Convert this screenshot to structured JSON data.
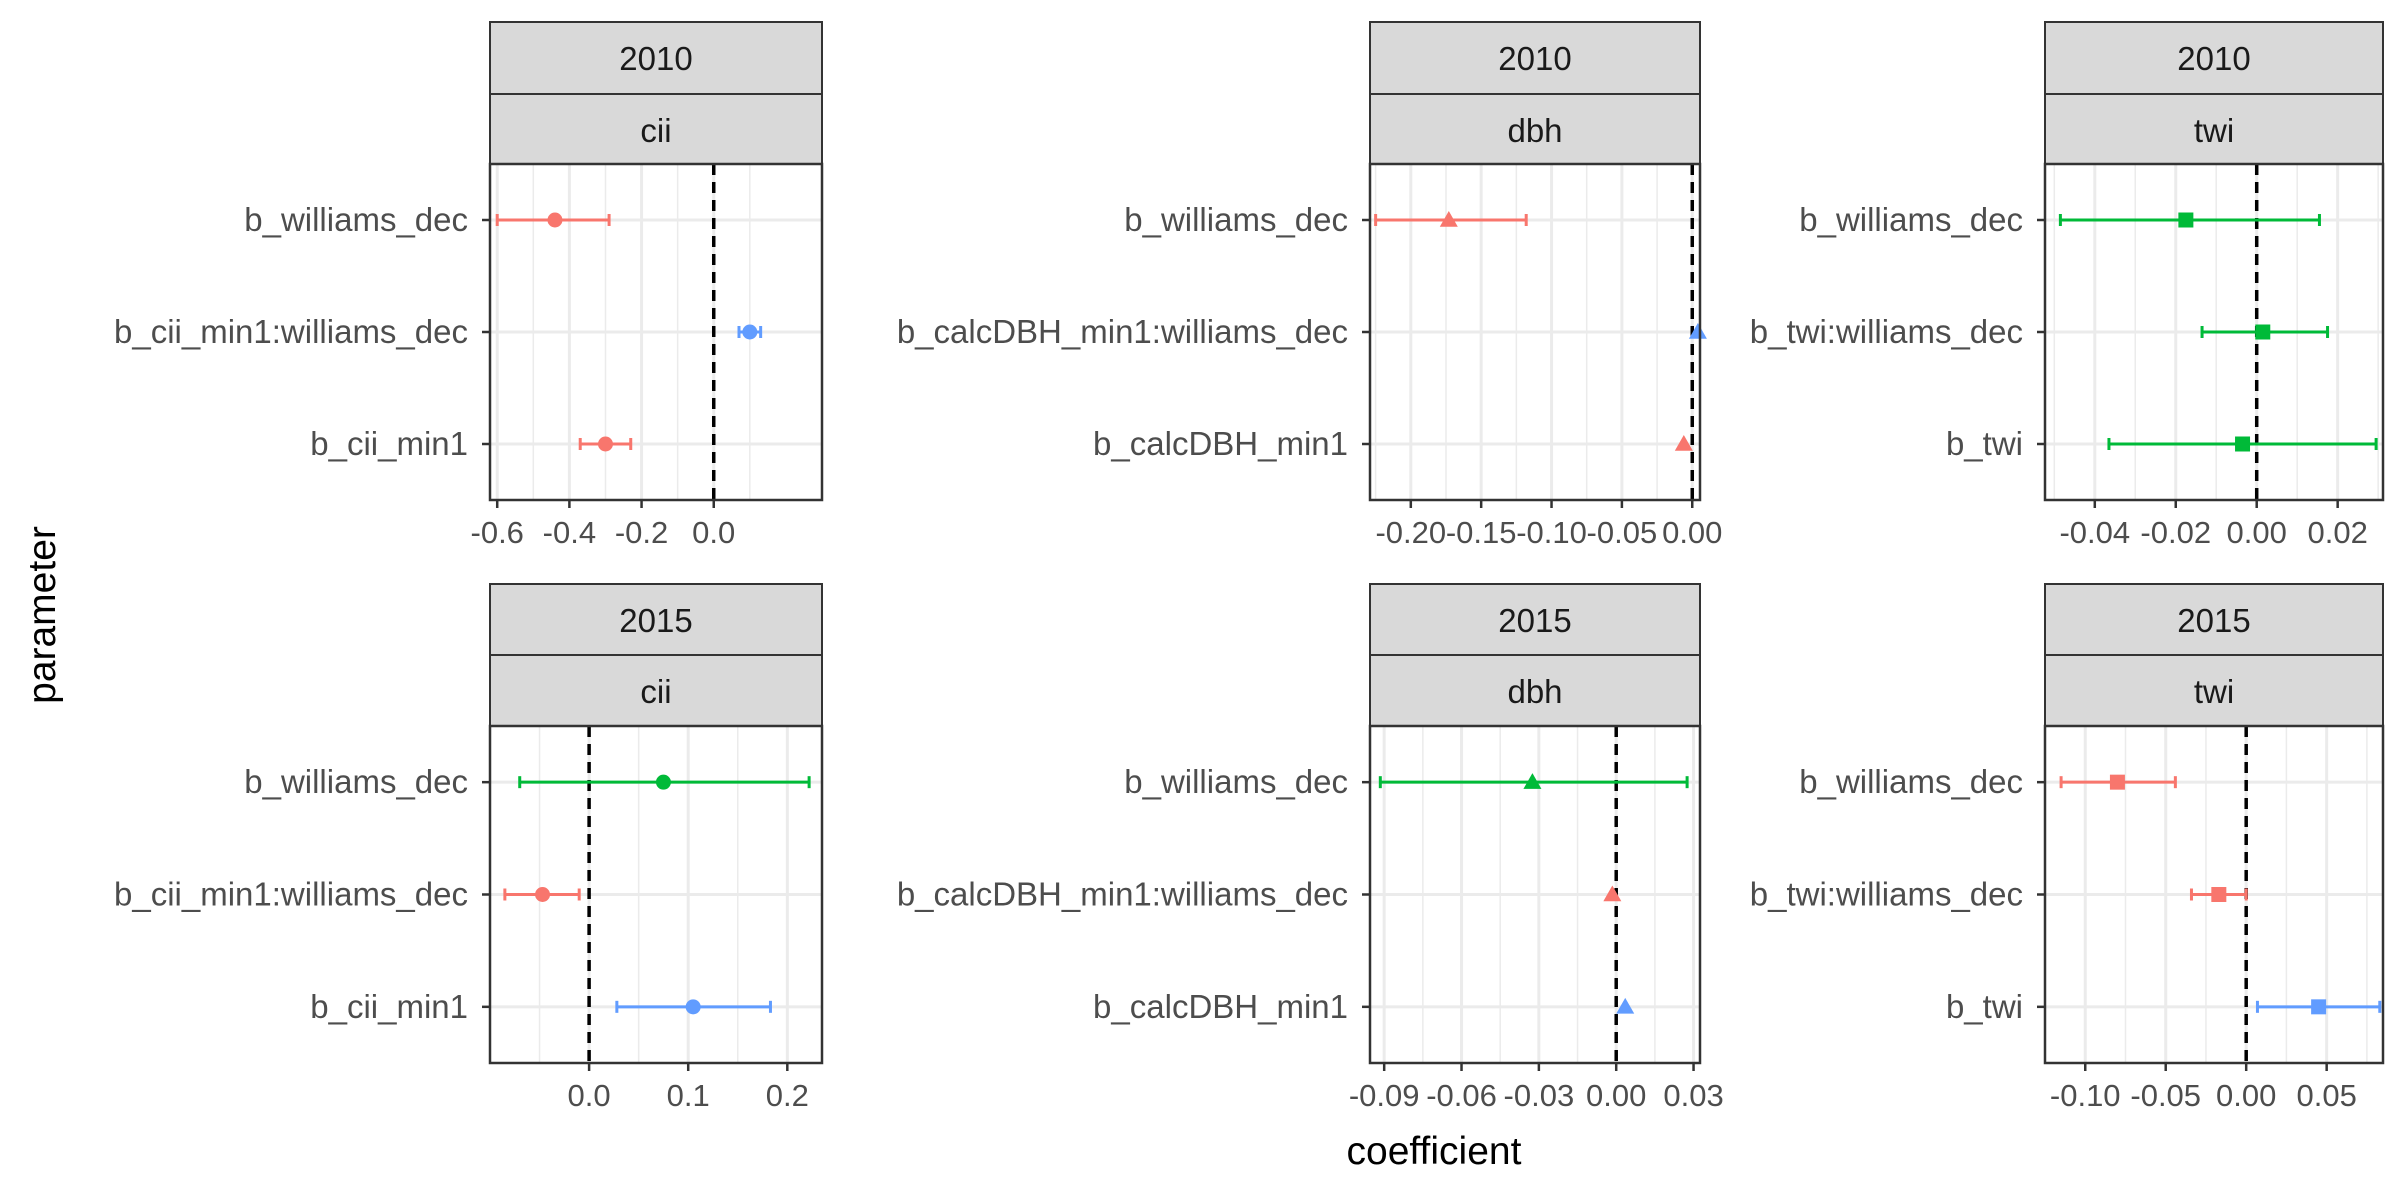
{
  "figure": {
    "xlabel": "coefficient",
    "ylabel": "parameter"
  },
  "colors": {
    "red": "#F8766D",
    "green": "#00BA38",
    "blue": "#619CFF",
    "panel_border": "#333333",
    "strip_fill": "#D9D9D9",
    "grid": "#EBEBEB",
    "text": "#4D4D4D"
  },
  "chart_data": [
    {
      "type": "scatter",
      "strip_year": "2010",
      "strip_var": "cii",
      "marker": "circle",
      "xlim": [
        -0.62,
        0.3
      ],
      "ticks": [
        -0.6,
        -0.4,
        -0.2,
        0.0
      ],
      "tick_labels": [
        "-0.6",
        "-0.4",
        "-0.2",
        "0.0"
      ],
      "minor_ticks": [
        -0.5,
        -0.3,
        -0.1,
        0.1
      ],
      "ref_line": 0,
      "categories": [
        "b_williams_dec",
        "b_cii_min1:williams_dec",
        "b_cii_min1"
      ],
      "points": [
        {
          "label": "b_williams_dec",
          "value": -0.44,
          "low": -0.6,
          "high": -0.29,
          "color": "#F8766D"
        },
        {
          "label": "b_cii_min1:williams_dec",
          "value": 0.1,
          "low": 0.07,
          "high": 0.13,
          "color": "#619CFF"
        },
        {
          "label": "b_cii_min1",
          "value": -0.3,
          "low": -0.37,
          "high": -0.23,
          "color": "#F8766D"
        }
      ]
    },
    {
      "type": "scatter",
      "strip_year": "2010",
      "strip_var": "dbh",
      "marker": "triangle",
      "xlim": [
        -0.229,
        0.0055
      ],
      "ticks": [
        -0.2,
        -0.15,
        -0.1,
        -0.05,
        0.0
      ],
      "tick_labels": [
        "-0.20",
        "-0.15",
        "-0.10",
        "-0.05",
        "0.00"
      ],
      "minor_ticks": [
        -0.225,
        -0.175,
        -0.125,
        -0.075,
        -0.025
      ],
      "ref_line": 0,
      "categories": [
        "b_williams_dec",
        "b_calcDBH_min1:williams_dec",
        "b_calcDBH_min1"
      ],
      "points": [
        {
          "label": "b_williams_dec",
          "value": -0.173,
          "low": -0.225,
          "high": -0.118,
          "color": "#F8766D"
        },
        {
          "label": "b_calcDBH_min1:williams_dec",
          "value": 0.004,
          "low": 0.004,
          "high": 0.004,
          "color": "#619CFF"
        },
        {
          "label": "b_calcDBH_min1",
          "value": -0.006,
          "low": -0.006,
          "high": -0.006,
          "color": "#F8766D"
        }
      ]
    },
    {
      "type": "scatter",
      "strip_year": "2010",
      "strip_var": "twi",
      "marker": "square",
      "xlim": [
        -0.0523,
        0.0312
      ],
      "ticks": [
        -0.04,
        -0.02,
        0.0,
        0.02
      ],
      "tick_labels": [
        "-0.04",
        "-0.02",
        "0.00",
        "0.02"
      ],
      "minor_ticks": [
        -0.05,
        -0.03,
        -0.01,
        0.01,
        0.03
      ],
      "ref_line": 0,
      "categories": [
        "b_williams_dec",
        "b_twi:williams_dec",
        "b_twi"
      ],
      "points": [
        {
          "label": "b_williams_dec",
          "value": -0.0175,
          "low": -0.0485,
          "high": 0.0155,
          "color": "#00BA38"
        },
        {
          "label": "b_twi:williams_dec",
          "value": 0.0015,
          "low": -0.0135,
          "high": 0.0175,
          "color": "#00BA38"
        },
        {
          "label": "b_twi",
          "value": -0.0035,
          "low": -0.0365,
          "high": 0.0295,
          "color": "#00BA38"
        }
      ]
    },
    {
      "type": "scatter",
      "strip_year": "2015",
      "strip_var": "cii",
      "marker": "circle",
      "xlim": [
        -0.1,
        0.235
      ],
      "ticks": [
        0.0,
        0.1,
        0.2
      ],
      "tick_labels": [
        "0.0",
        "0.1",
        "0.2"
      ],
      "minor_ticks": [
        -0.05,
        0.05,
        0.15
      ],
      "ref_line": 0,
      "categories": [
        "b_williams_dec",
        "b_cii_min1:williams_dec",
        "b_cii_min1"
      ],
      "points": [
        {
          "label": "b_williams_dec",
          "value": 0.075,
          "low": -0.07,
          "high": 0.222,
          "color": "#00BA38"
        },
        {
          "label": "b_cii_min1:williams_dec",
          "value": -0.047,
          "low": -0.085,
          "high": -0.01,
          "color": "#F8766D"
        },
        {
          "label": "b_cii_min1",
          "value": 0.105,
          "low": 0.028,
          "high": 0.183,
          "color": "#619CFF"
        }
      ]
    },
    {
      "type": "scatter",
      "strip_year": "2015",
      "strip_var": "dbh",
      "marker": "triangle",
      "xlim": [
        -0.0955,
        0.0325
      ],
      "ticks": [
        -0.09,
        -0.06,
        -0.03,
        0.0,
        0.03
      ],
      "tick_labels": [
        "-0.09",
        "-0.06",
        "-0.03",
        "0.00",
        "0.03"
      ],
      "minor_ticks": [
        -0.075,
        -0.045,
        -0.015,
        0.015
      ],
      "ref_line": 0,
      "categories": [
        "b_williams_dec",
        "b_calcDBH_min1:williams_dec",
        "b_calcDBH_min1"
      ],
      "points": [
        {
          "label": "b_williams_dec",
          "value": -0.0325,
          "low": -0.0915,
          "high": 0.0275,
          "color": "#00BA38"
        },
        {
          "label": "b_calcDBH_min1:williams_dec",
          "value": -0.0015,
          "low": -0.0015,
          "high": -0.0015,
          "color": "#F8766D"
        },
        {
          "label": "b_calcDBH_min1",
          "value": 0.0035,
          "low": 0.0035,
          "high": 0.0035,
          "color": "#619CFF"
        }
      ]
    },
    {
      "type": "scatter",
      "strip_year": "2015",
      "strip_var": "twi",
      "marker": "square",
      "xlim": [
        -0.125,
        0.085
      ],
      "ticks": [
        -0.1,
        -0.05,
        0.0,
        0.05
      ],
      "tick_labels": [
        "-0.10",
        "-0.05",
        "0.00",
        "0.05"
      ],
      "minor_ticks": [
        -0.125,
        -0.075,
        -0.025,
        0.025,
        0.075
      ],
      "ref_line": 0,
      "categories": [
        "b_williams_dec",
        "b_twi:williams_dec",
        "b_twi"
      ],
      "points": [
        {
          "label": "b_williams_dec",
          "value": -0.08,
          "low": -0.115,
          "high": -0.044,
          "color": "#F8766D"
        },
        {
          "label": "b_twi:williams_dec",
          "value": -0.017,
          "low": -0.034,
          "high": 0.0,
          "color": "#F8766D"
        },
        {
          "label": "b_twi",
          "value": 0.045,
          "low": 0.007,
          "high": 0.083,
          "color": "#619CFF"
        }
      ]
    }
  ]
}
